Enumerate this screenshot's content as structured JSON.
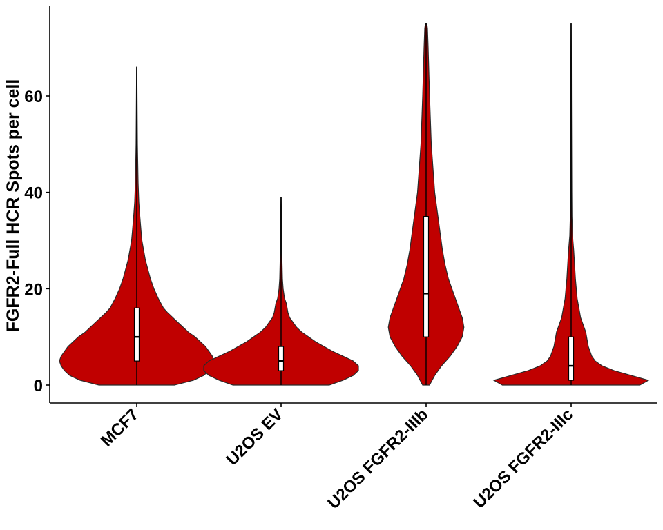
{
  "chart_data": {
    "type": "violin",
    "title": "",
    "xlabel": "",
    "ylabel": "FGFR2-Full HCR Spots per cell",
    "ylim": [
      -3.5,
      78
    ],
    "yticks": [
      0,
      20,
      40,
      60
    ],
    "ytick_labels": [
      "0",
      "20",
      "40",
      "60"
    ],
    "grid": false,
    "legend": "none",
    "fill_color": "#C00000",
    "categories": [
      "MCF7",
      "U2OS EV",
      "U2OS FGFR2-IIIb",
      "U2OS FGFR2-IIIc"
    ],
    "groups": [
      {
        "name": "MCF7",
        "min": 0,
        "q1": 5,
        "median": 10,
        "q3": 16,
        "max": 66,
        "density": [
          [
            0,
            0.22
          ],
          [
            1,
            0.33
          ],
          [
            2,
            0.39
          ],
          [
            3,
            0.42
          ],
          [
            4,
            0.44
          ],
          [
            5,
            0.45
          ],
          [
            6,
            0.44
          ],
          [
            7,
            0.42
          ],
          [
            8,
            0.4
          ],
          [
            9,
            0.37
          ],
          [
            10,
            0.34
          ],
          [
            11,
            0.3
          ],
          [
            12,
            0.27
          ],
          [
            13,
            0.24
          ],
          [
            14,
            0.21
          ],
          [
            15,
            0.18
          ],
          [
            16,
            0.155
          ],
          [
            18,
            0.125
          ],
          [
            20,
            0.1
          ],
          [
            22,
            0.08
          ],
          [
            24,
            0.065
          ],
          [
            26,
            0.05
          ],
          [
            28,
            0.04
          ],
          [
            30,
            0.03
          ],
          [
            32,
            0.025
          ],
          [
            35,
            0.018
          ],
          [
            38,
            0.012
          ],
          [
            42,
            0.008
          ],
          [
            46,
            0.006
          ],
          [
            50,
            0.004
          ],
          [
            55,
            0.003
          ],
          [
            60,
            0.002
          ],
          [
            66,
            0.001
          ]
        ]
      },
      {
        "name": "U2OS EV",
        "min": 0,
        "q1": 3,
        "median": 5,
        "q3": 8,
        "max": 39,
        "density": [
          [
            0,
            0.28
          ],
          [
            1,
            0.36
          ],
          [
            2,
            0.42
          ],
          [
            3,
            0.45
          ],
          [
            4,
            0.45
          ],
          [
            5,
            0.42
          ],
          [
            6,
            0.36
          ],
          [
            7,
            0.3
          ],
          [
            8,
            0.25
          ],
          [
            9,
            0.2
          ],
          [
            10,
            0.16
          ],
          [
            11,
            0.12
          ],
          [
            12,
            0.09
          ],
          [
            13,
            0.07
          ],
          [
            14,
            0.05
          ],
          [
            15,
            0.04
          ],
          [
            16,
            0.035
          ],
          [
            17,
            0.03
          ],
          [
            18,
            0.02
          ],
          [
            20,
            0.012
          ],
          [
            22,
            0.008
          ],
          [
            25,
            0.006
          ],
          [
            28,
            0.004
          ],
          [
            32,
            0.003
          ],
          [
            36,
            0.002
          ],
          [
            39,
            0.001
          ]
        ]
      },
      {
        "name": "U2OS FGFR2-IIIb",
        "min": 0,
        "q1": 10,
        "median": 19,
        "q3": 35,
        "max": 75,
        "density": [
          [
            0,
            0.02
          ],
          [
            2,
            0.05
          ],
          [
            4,
            0.09
          ],
          [
            6,
            0.14
          ],
          [
            8,
            0.18
          ],
          [
            10,
            0.21
          ],
          [
            12,
            0.22
          ],
          [
            14,
            0.21
          ],
          [
            16,
            0.19
          ],
          [
            18,
            0.17
          ],
          [
            20,
            0.15
          ],
          [
            22,
            0.13
          ],
          [
            25,
            0.11
          ],
          [
            28,
            0.095
          ],
          [
            32,
            0.08
          ],
          [
            36,
            0.065
          ],
          [
            40,
            0.05
          ],
          [
            45,
            0.04
          ],
          [
            50,
            0.03
          ],
          [
            55,
            0.025
          ],
          [
            60,
            0.02
          ],
          [
            65,
            0.016
          ],
          [
            70,
            0.012
          ],
          [
            74,
            0.008
          ],
          [
            75,
            0.004
          ]
        ]
      },
      {
        "name": "U2OS FGFR2-IIIc",
        "min": 0,
        "q1": 1,
        "median": 4,
        "q3": 10,
        "max": 75,
        "density": [
          [
            0,
            0.4
          ],
          [
            1,
            0.45
          ],
          [
            2,
            0.35
          ],
          [
            3,
            0.25
          ],
          [
            4,
            0.18
          ],
          [
            5,
            0.14
          ],
          [
            6,
            0.12
          ],
          [
            7,
            0.11
          ],
          [
            8,
            0.1
          ],
          [
            9,
            0.095
          ],
          [
            10,
            0.09
          ],
          [
            11,
            0.085
          ],
          [
            12,
            0.075
          ],
          [
            13,
            0.065
          ],
          [
            14,
            0.055
          ],
          [
            16,
            0.045
          ],
          [
            18,
            0.035
          ],
          [
            20,
            0.03
          ],
          [
            22,
            0.025
          ],
          [
            25,
            0.02
          ],
          [
            28,
            0.015
          ],
          [
            31,
            0.008
          ],
          [
            35,
            0.005
          ],
          [
            40,
            0.004
          ],
          [
            50,
            0.003
          ],
          [
            60,
            0.002
          ],
          [
            70,
            0.0015
          ],
          [
            75,
            0.001
          ]
        ]
      }
    ]
  }
}
